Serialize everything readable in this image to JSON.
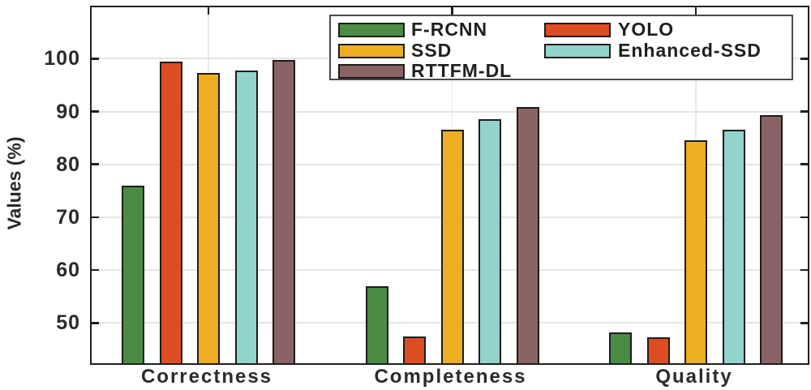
{
  "figure": {
    "background": "#ffffff",
    "text_color": "#2a2a2a",
    "grid_color": "#e4e4e4",
    "axis_color": "#1f1f1f"
  },
  "chart_data": {
    "type": "bar",
    "title": "",
    "xlabel": "",
    "ylabel": "Values (%)",
    "categories": [
      "Correctness",
      "Completeness",
      "Quality"
    ],
    "series": [
      {
        "name": "F-RCNN",
        "color": "#4A8C44",
        "values": [
          76.0,
          57.0,
          48.2
        ]
      },
      {
        "name": "YOLO",
        "color": "#DC4E22",
        "values": [
          99.5,
          47.4,
          47.3
        ]
      },
      {
        "name": "SSD",
        "color": "#EDAE21",
        "values": [
          97.3,
          86.6,
          84.5
        ]
      },
      {
        "name": "Enhanced-SSD",
        "color": "#92D4CD",
        "values": [
          97.8,
          88.5,
          86.6
        ]
      },
      {
        "name": "RTTFM-DL",
        "color": "#8A6464",
        "values": [
          99.8,
          90.8,
          89.3
        ]
      }
    ],
    "yticks": [
      50,
      60,
      70,
      80,
      90,
      100
    ],
    "ylim": [
      42.4,
      109.7
    ],
    "grid": "on",
    "legend_position": "top-right",
    "legend_columns": [
      [
        "F-RCNN",
        "SSD",
        "RTTFM-DL"
      ],
      [
        "YOLO",
        "Enhanced-SSD"
      ]
    ]
  }
}
